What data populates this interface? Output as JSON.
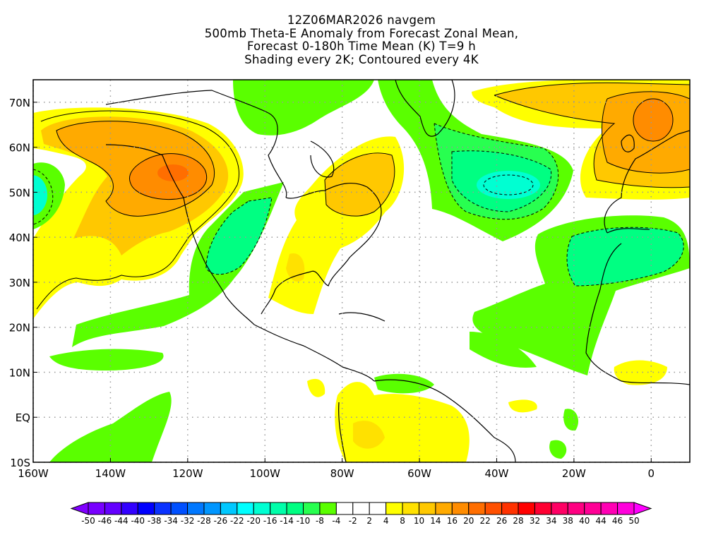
{
  "title": {
    "line1": "12Z06MAR2026 navgem",
    "line2": "500mb Theta-E Anomaly from Forecast Zonal Mean,",
    "line3": "Forecast 0-180h Time Mean (K) T=9 h",
    "line4": "Shading every 2K; Contoured every 4K"
  },
  "map": {
    "lon_range": [
      -160,
      10
    ],
    "lat_range": [
      -10,
      75
    ],
    "lon_ticks": [
      {
        "value": -160,
        "label": "160W"
      },
      {
        "value": -140,
        "label": "140W"
      },
      {
        "value": -120,
        "label": "120W"
      },
      {
        "value": -100,
        "label": "100W"
      },
      {
        "value": -80,
        "label": "80W"
      },
      {
        "value": -60,
        "label": "60W"
      },
      {
        "value": -40,
        "label": "40W"
      },
      {
        "value": -20,
        "label": "20W"
      },
      {
        "value": 0,
        "label": "0"
      }
    ],
    "lat_ticks": [
      {
        "value": 70,
        "label": "70N"
      },
      {
        "value": 60,
        "label": "60N"
      },
      {
        "value": 50,
        "label": "50N"
      },
      {
        "value": 40,
        "label": "40N"
      },
      {
        "value": 30,
        "label": "30N"
      },
      {
        "value": 20,
        "label": "20N"
      },
      {
        "value": 10,
        "label": "10N"
      },
      {
        "value": 0,
        "label": "EQ"
      },
      {
        "value": -10,
        "label": "10S"
      }
    ]
  },
  "colorbar": {
    "labels": [
      "-50",
      "-46",
      "-44",
      "-40",
      "-38",
      "-34",
      "-32",
      "-28",
      "-26",
      "-22",
      "-20",
      "-16",
      "-14",
      "-10",
      "-8",
      "-4",
      "-2",
      "2",
      "4",
      "8",
      "10",
      "14",
      "16",
      "20",
      "22",
      "26",
      "28",
      "32",
      "34",
      "38",
      "40",
      "44",
      "46",
      "50"
    ],
    "low_arrow_color": "#8000ff",
    "high_arrow_color": "#ff00ff",
    "colors": [
      "#7800ff",
      "#6400ff",
      "#3200ff",
      "#0000ff",
      "#0a32ff",
      "#0050ff",
      "#0078ff",
      "#0096ff",
      "#00c8ff",
      "#00ffff",
      "#00ffd2",
      "#00ffaa",
      "#00ff82",
      "#28ff50",
      "#5aff00",
      "#ffffff",
      "#ffffff",
      "#ffffff",
      "#ffff00",
      "#ffe100",
      "#ffc800",
      "#ffaa00",
      "#ff8c00",
      "#ff6e00",
      "#ff5000",
      "#ff3200",
      "#ff0000",
      "#ff0032",
      "#ff0064",
      "#ff0082",
      "#ff0096",
      "#ff00b4",
      "#ff00dc"
    ]
  }
}
